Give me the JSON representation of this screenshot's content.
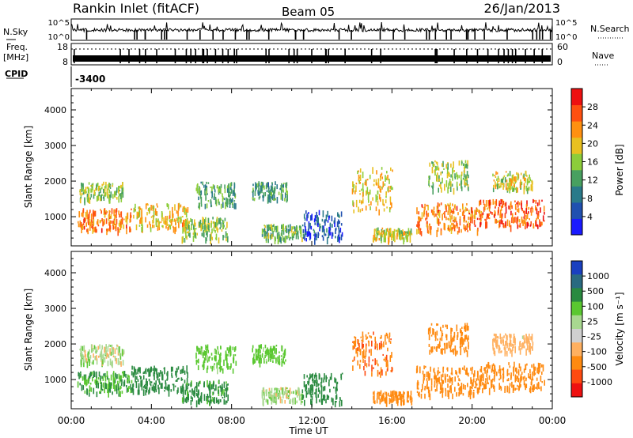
{
  "header": {
    "station": "Rankin Inlet (fitACF)",
    "beam": "Beam 05",
    "date": "26/Jan/2013"
  },
  "sky_panel": {
    "left_label": "N.Sky",
    "right_label": "N.Search",
    "left_ticks": [
      "10^5",
      "10^0"
    ],
    "right_ticks": [
      "10^5",
      "10^0"
    ]
  },
  "freq_panel": {
    "left_label_line1": "Freq.",
    "left_label_line2": "[MHz]",
    "right_label": "Nave",
    "left_ticks": [
      "18",
      "8"
    ],
    "right_ticks": [
      "60",
      "0"
    ]
  },
  "cpid": {
    "label": "CPID",
    "value": "-3400"
  },
  "x_axis": {
    "title": "Time UT",
    "tick_labels": [
      "00:00",
      "04:00",
      "08:00",
      "12:00",
      "16:00",
      "20:00",
      "00:00"
    ]
  },
  "colors": {
    "power": [
      "#1a1aff",
      "#2050b0",
      "#2a7a8a",
      "#48a060",
      "#8ccd3a",
      "#e8c020",
      "#ff9010",
      "#ff5010",
      "#ee1010"
    ],
    "velocity": [
      "#ee1010",
      "#ff4a10",
      "#ff8a10",
      "#ffb060",
      "#d0d0d0",
      "#a8d890",
      "#5ac830",
      "#2a8a40",
      "#2a6a80",
      "#1a40c0"
    ]
  },
  "chart_data": [
    {
      "type": "heatmap",
      "name": "power",
      "ylabel": "Slant Range [km]",
      "xlabel": "",
      "x_range_hours": [
        0,
        24
      ],
      "ylim": [
        180,
        4600
      ],
      "yticks": [
        1000,
        2000,
        3000,
        4000
      ],
      "colorbar": {
        "label": "Power [dB]",
        "range": [
          0,
          32
        ],
        "ticks": [
          4,
          8,
          12,
          16,
          20,
          24,
          28
        ]
      },
      "regions": [
        {
          "t0": 0.3,
          "t1": 3.0,
          "r0": 650,
          "r1": 1250,
          "v": 24
        },
        {
          "t0": 0.4,
          "t1": 2.6,
          "r0": 1500,
          "r1": 2000,
          "v": 16
        },
        {
          "t0": 3.0,
          "t1": 5.8,
          "r0": 700,
          "r1": 1400,
          "v": 20
        },
        {
          "t0": 5.5,
          "t1": 7.8,
          "r0": 400,
          "r1": 1000,
          "v": 16
        },
        {
          "t0": 6.2,
          "t1": 8.2,
          "r0": 1300,
          "r1": 2000,
          "v": 12
        },
        {
          "t0": 9.0,
          "t1": 10.8,
          "r0": 1500,
          "r1": 2000,
          "v": 12
        },
        {
          "t0": 9.5,
          "t1": 11.5,
          "r0": 400,
          "r1": 800,
          "v": 14
        },
        {
          "t0": 11.5,
          "t1": 13.5,
          "r0": 400,
          "r1": 1200,
          "v": 6
        },
        {
          "t0": 14.0,
          "t1": 16.0,
          "r0": 1200,
          "r1": 2400,
          "v": 20
        },
        {
          "t0": 15.0,
          "t1": 17.0,
          "r0": 400,
          "r1": 700,
          "v": 18
        },
        {
          "t0": 17.2,
          "t1": 20.3,
          "r0": 600,
          "r1": 1400,
          "v": 24
        },
        {
          "t0": 17.8,
          "t1": 19.8,
          "r0": 1800,
          "r1": 2600,
          "v": 16
        },
        {
          "t0": 20.3,
          "t1": 23.6,
          "r0": 750,
          "r1": 1500,
          "v": 26
        },
        {
          "t0": 21.0,
          "t1": 23.0,
          "r0": 1800,
          "r1": 2300,
          "v": 18
        }
      ]
    },
    {
      "type": "heatmap",
      "name": "velocity",
      "ylabel": "Slant Range [km]",
      "xlabel": "Time UT",
      "x_range_hours": [
        0,
        24
      ],
      "ylim": [
        180,
        4600
      ],
      "yticks": [
        1000,
        2000,
        3000,
        4000
      ],
      "colorbar": {
        "label": "Velocity [m s⁻¹]",
        "tick_labels": [
          "1000",
          "500",
          "100",
          "25",
          "-25",
          "-100",
          "-500",
          "-1000"
        ]
      },
      "regions": [
        {
          "t0": 0.3,
          "t1": 3.0,
          "r0": 650,
          "r1": 1250,
          "v": 100
        },
        {
          "t0": 0.4,
          "t1": 2.6,
          "r0": 1500,
          "r1": 2000,
          "v": 0
        },
        {
          "t0": 3.0,
          "t1": 5.8,
          "r0": 700,
          "r1": 1400,
          "v": 300
        },
        {
          "t0": 5.5,
          "t1": 7.8,
          "r0": 400,
          "r1": 1000,
          "v": 150
        },
        {
          "t0": 6.2,
          "t1": 8.2,
          "r0": 1300,
          "r1": 2000,
          "v": 60
        },
        {
          "t0": 9.0,
          "t1": 10.8,
          "r0": 1500,
          "r1": 2000,
          "v": 60
        },
        {
          "t0": 9.5,
          "t1": 11.5,
          "r0": 400,
          "r1": 800,
          "v": 0
        },
        {
          "t0": 11.5,
          "t1": 13.5,
          "r0": 400,
          "r1": 1200,
          "v": 200
        },
        {
          "t0": 14.0,
          "t1": 16.0,
          "r0": 1200,
          "r1": 2400,
          "v": -400
        },
        {
          "t0": 15.0,
          "t1": 17.0,
          "r0": 400,
          "r1": 700,
          "v": -150
        },
        {
          "t0": 17.2,
          "t1": 20.3,
          "r0": 600,
          "r1": 1400,
          "v": -300
        },
        {
          "t0": 17.8,
          "t1": 19.8,
          "r0": 1800,
          "r1": 2600,
          "v": -250
        },
        {
          "t0": 20.3,
          "t1": 23.6,
          "r0": 750,
          "r1": 1500,
          "v": -200
        },
        {
          "t0": 21.0,
          "t1": 23.0,
          "r0": 1800,
          "r1": 2300,
          "v": -60
        }
      ]
    }
  ]
}
